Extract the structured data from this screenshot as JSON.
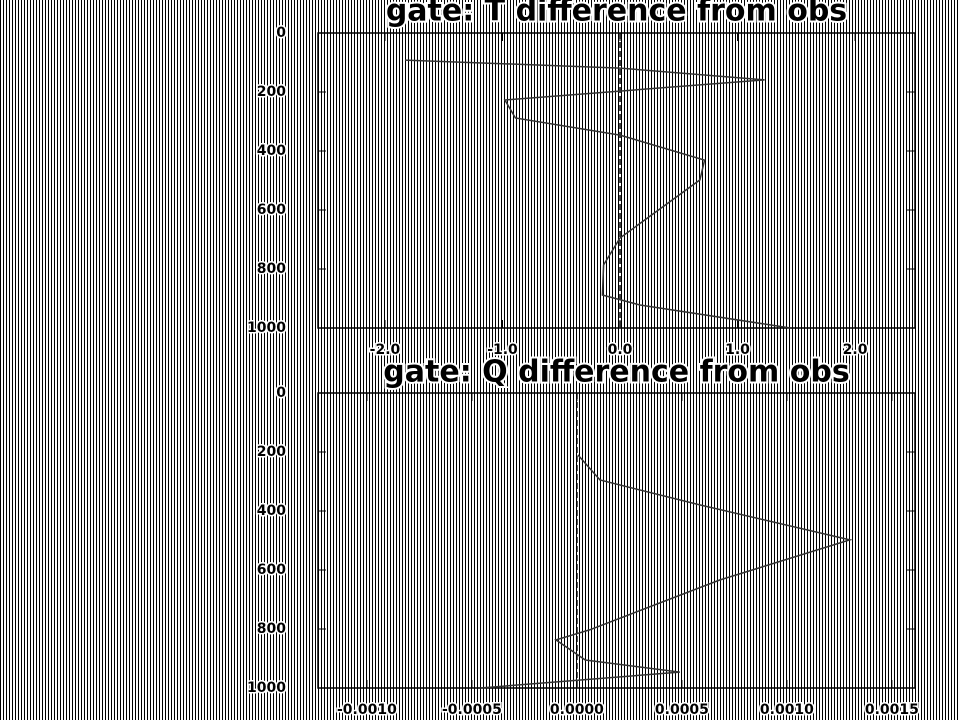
{
  "chart_data": [
    {
      "type": "line",
      "title": "gate:   T difference from obs",
      "x": [
        -1.83,
        0,
        1.23,
        -0.98,
        -0.89,
        0,
        0.72,
        0.68,
        0,
        -0.14,
        -0.15,
        0.17,
        1.45
      ],
      "series": [
        {
          "color": "#333333",
          "values": [
            92,
            119,
            159,
            227,
            288,
            346,
            431,
            498,
            695,
            786,
            888,
            922,
            1000
          ]
        }
      ],
      "xlim": [
        -2.57,
        2.51
      ],
      "xticks": [
        {
          "value": -2,
          "label": "-2.0"
        },
        {
          "value": -1,
          "label": "-1.0"
        },
        {
          "value": 0,
          "label": "0.0"
        },
        {
          "value": 1,
          "label": "1.0"
        },
        {
          "value": 2,
          "label": "2.0"
        }
      ],
      "ylim": [
        0,
        1000
      ],
      "yticks": [
        0,
        200,
        400,
        600,
        800,
        1000
      ],
      "y_inverted": true,
      "vline": 0
    },
    {
      "type": "line",
      "title": "gate:   Q difference from obs",
      "x": [
        4.8e-06,
        0.00011,
        0.00059,
        0.0013,
        0.00068,
        6e-05,
        -0.0001,
        4e-05,
        0.00049,
        -0.00046
      ],
      "series": [
        {
          "color": "#333333",
          "values": [
            210,
            295,
            380,
            498,
            634,
            803,
            837,
            905,
            946,
            1000
          ]
        }
      ],
      "xlim": [
        -0.001233,
        0.00161
      ],
      "xticks": [
        {
          "value": -0.001,
          "label": "-0.0010"
        },
        {
          "value": -0.0005,
          "label": "-0.0005"
        },
        {
          "value": 0,
          "label": "0.0000"
        },
        {
          "value": 0.0005,
          "label": "0.0005"
        },
        {
          "value": 0.001,
          "label": "0.0010"
        },
        {
          "value": 0.0015,
          "label": "0.0015"
        }
      ],
      "ylim": [
        0,
        1000
      ],
      "yticks": [
        0,
        200,
        400,
        600,
        800,
        1000
      ],
      "y_inverted": true,
      "vline": 0
    }
  ]
}
